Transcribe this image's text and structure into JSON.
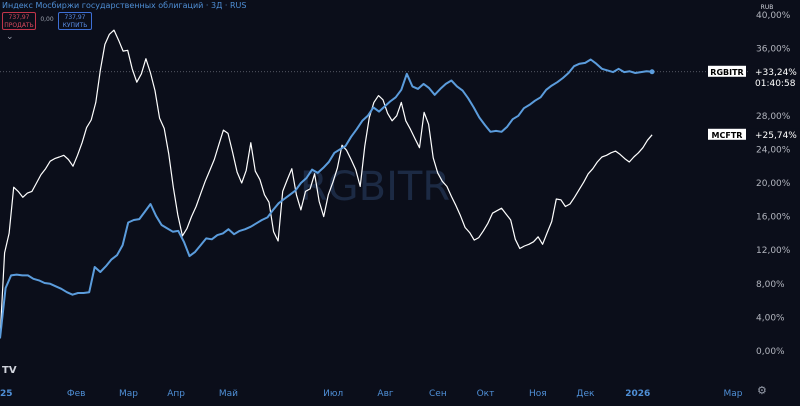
{
  "header": {
    "title": "Индекс Мосбиржи государственных облигаций · 3Д · RUS",
    "sell_price": "737,97",
    "sell_label": "ПРОДАТЬ",
    "spread": "0,00",
    "buy_price": "737,97",
    "buy_label": "КУПИТЬ",
    "collapse_icon": "chevron-down-icon"
  },
  "watermark": "RGBITR",
  "currency": "RUB",
  "colors": {
    "background": "#0b0e1a",
    "rgbitr": "#5b9cdc",
    "mcftr": "#ffffff",
    "grid_dots": "#6b6f7a",
    "axis_text": "#b2b5be",
    "date_labels": "#4f8fd6"
  },
  "chart_data": {
    "type": "line",
    "x_unit": "trading day index (~3 days per point)",
    "x_ticks": [
      {
        "x": 0,
        "label": "2025"
      },
      {
        "x": 16,
        "label": "Фев"
      },
      {
        "x": 27,
        "label": "Мар"
      },
      {
        "x": 37,
        "label": "Апр"
      },
      {
        "x": 48,
        "label": "Май"
      },
      {
        "x": 70,
        "label": "Июл"
      },
      {
        "x": 81,
        "label": "Авг"
      },
      {
        "x": 92,
        "label": "Сен"
      },
      {
        "x": 102,
        "label": "Окт"
      },
      {
        "x": 113,
        "label": "Ноя"
      },
      {
        "x": 123,
        "label": "Дек"
      },
      {
        "x": 134,
        "label": "2026"
      },
      {
        "x": 154,
        "label": "Мар"
      }
    ],
    "y_ticks": [
      0,
      4,
      8,
      12,
      16,
      20,
      24,
      28,
      32,
      36,
      40
    ],
    "y_tick_labels": [
      "0,00%",
      "4,00%",
      "8,00%",
      "12,00%",
      "16,00%",
      "20,00%",
      "24,00%",
      "28,00%",
      "32,00%",
      "36,00%",
      "40,00%"
    ],
    "ylim": [
      0,
      40
    ],
    "xlim": [
      0,
      158
    ],
    "series": [
      {
        "name": "RGBITR",
        "last_value": "+33,24%",
        "countdown": "01:40:58",
        "values": [
          1.5,
          7.5,
          9.0,
          9.1,
          9.0,
          9.0,
          8.6,
          8.4,
          8.1,
          8.0,
          7.7,
          7.4,
          7.0,
          6.7,
          6.9,
          6.9,
          7.0,
          10.0,
          9.4,
          10.1,
          10.9,
          11.4,
          12.6,
          15.3,
          15.6,
          15.7,
          16.6,
          17.5,
          16.1,
          15.0,
          14.6,
          14.2,
          14.3,
          13.0,
          11.3,
          11.8,
          12.6,
          13.4,
          13.3,
          13.8,
          14.0,
          14.5,
          13.9,
          14.3,
          14.5,
          14.8,
          15.2,
          15.6,
          15.9,
          16.8,
          17.6,
          18.1,
          18.6,
          19.1,
          20.0,
          20.6,
          21.6,
          21.2,
          21.8,
          22.5,
          23.6,
          24.0,
          24.4,
          25.5,
          26.4,
          27.4,
          28.0,
          29.0,
          28.5,
          29.1,
          29.7,
          30.2,
          31.1,
          33.0,
          31.5,
          31.2,
          31.8,
          31.3,
          30.5,
          31.2,
          31.8,
          32.2,
          31.5,
          31.0,
          30.1,
          29.0,
          27.8,
          26.9,
          26.1,
          26.2,
          26.1,
          26.7,
          27.6,
          28.0,
          28.9,
          29.3,
          29.8,
          30.2,
          31.1,
          31.6,
          32.0,
          32.5,
          33.1,
          33.9,
          34.2,
          34.3,
          34.7,
          34.2,
          33.6,
          33.4,
          33.2,
          33.6,
          33.2,
          33.3,
          33.1,
          33.2,
          33.3,
          33.24
        ]
      },
      {
        "name": "MCFTR",
        "last_value": "+25,74%",
        "values": [
          1.5,
          11.7,
          14.0,
          19.5,
          19.0,
          18.3,
          18.8,
          19.0,
          20.0,
          21.0,
          21.7,
          22.6,
          22.9,
          23.1,
          23.3,
          22.8,
          22.0,
          23.3,
          24.8,
          26.6,
          27.5,
          29.6,
          33.4,
          36.5,
          37.7,
          38.2,
          37.0,
          35.7,
          35.8,
          33.6,
          32.0,
          33.0,
          34.8,
          33.1,
          31.0,
          27.7,
          26.5,
          23.5,
          19.5,
          16.2,
          13.7,
          14.6,
          16.0,
          17.2,
          18.7,
          20.2,
          21.5,
          22.8,
          24.6,
          26.3,
          25.9,
          23.7,
          21.3,
          20.0,
          21.5,
          24.8,
          21.4,
          20.4,
          18.6,
          17.7,
          14.2,
          13.1,
          19.0,
          20.4,
          21.7,
          18.6,
          16.8,
          19.0,
          19.3,
          21.1,
          17.8,
          16.0,
          18.6,
          20.1,
          21.8,
          24.5,
          23.9,
          22.8,
          21.6,
          19.6,
          24.4,
          27.8,
          29.6,
          30.4,
          29.9,
          28.3,
          27.4,
          28.0,
          29.6,
          27.4,
          26.4,
          25.3,
          24.2,
          28.4,
          27.0,
          23.0,
          21.2,
          20.2,
          19.6,
          18.4,
          17.3,
          16.1,
          14.7,
          14.1,
          13.2,
          13.5,
          14.3,
          15.2,
          16.4,
          16.7,
          17.0,
          16.3,
          15.6,
          13.3,
          12.2,
          12.5,
          12.7,
          13.0,
          13.6,
          12.7,
          14.1,
          15.4,
          18.1,
          18.0,
          17.2,
          17.5,
          18.3,
          19.2,
          20.1,
          21.1,
          21.7,
          22.5,
          23.1,
          23.3,
          23.6,
          23.8,
          23.4,
          22.9,
          22.5,
          23.1,
          23.6,
          24.2,
          25.1,
          25.74
        ]
      }
    ],
    "last_x": {
      "RGBITR": 137,
      "MCFTR": 137
    },
    "legend": "labels at right edge",
    "grid": "dotted horizontal line at last RGBITR value"
  }
}
